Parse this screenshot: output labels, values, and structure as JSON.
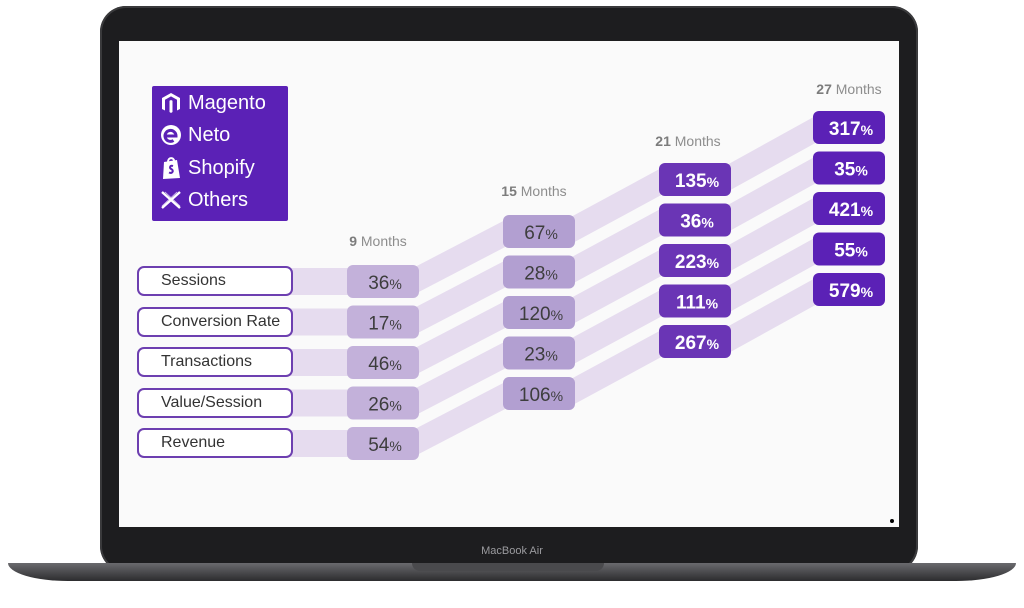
{
  "device": {
    "model_label": "MacBook Air"
  },
  "legend": {
    "items": [
      {
        "label": "Magento",
        "icon": "magento-icon"
      },
      {
        "label": "Neto",
        "icon": "neto-icon"
      },
      {
        "label": "Shopify",
        "icon": "shopify-icon"
      },
      {
        "label": "Others",
        "icon": "x-icon"
      }
    ],
    "background": "#5b21b6"
  },
  "chart_data": {
    "type": "table",
    "categories": [
      "Sessions",
      "Conversion Rate",
      "Transactions",
      "Value/Session",
      "Revenue"
    ],
    "unit": "%",
    "periods": [
      {
        "number": "9",
        "unit": "Months",
        "values": [
          36,
          17,
          46,
          26,
          54
        ]
      },
      {
        "number": "15",
        "unit": "Months",
        "values": [
          67,
          28,
          120,
          23,
          106
        ]
      },
      {
        "number": "21",
        "unit": "Months",
        "values": [
          135,
          36,
          223,
          111,
          267
        ]
      },
      {
        "number": "27",
        "unit": "Months",
        "values": [
          317,
          35,
          421,
          55,
          579
        ]
      }
    ],
    "colors": {
      "band": "#e6dcef",
      "box_light": "#c3b1da",
      "box_mid": "#b29fd1",
      "box_dark": "#6a35b5",
      "box_darkest": "#5b21b6"
    }
  }
}
